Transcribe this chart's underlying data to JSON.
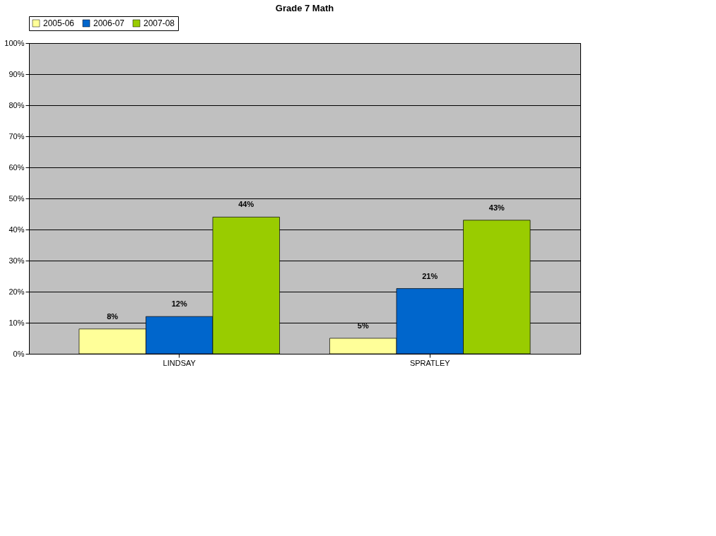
{
  "chart_data": {
    "type": "bar",
    "title": "Grade 7 Math",
    "categories": [
      "LINDSAY",
      "SPRATLEY"
    ],
    "series": [
      {
        "name": "2005-06",
        "color": "#ffff99",
        "values": [
          8,
          5
        ],
        "value_labels": [
          "8%",
          "5%"
        ]
      },
      {
        "name": "2006-07",
        "color": "#0066cc",
        "values": [
          12,
          21
        ],
        "value_labels": [
          "12%",
          "21%"
        ]
      },
      {
        "name": "2007-08",
        "color": "#99cc00",
        "values": [
          44,
          43
        ],
        "value_labels": [
          "44%",
          "43%"
        ]
      }
    ],
    "ylim": [
      0,
      100
    ],
    "yticks": [
      {
        "value": 0,
        "label": "0%"
      },
      {
        "value": 10,
        "label": "10%"
      },
      {
        "value": 20,
        "label": "20%"
      },
      {
        "value": 30,
        "label": "30%"
      },
      {
        "value": 40,
        "label": "40%"
      },
      {
        "value": 50,
        "label": "50%"
      },
      {
        "value": 60,
        "label": "60%"
      },
      {
        "value": 70,
        "label": "70%"
      },
      {
        "value": 80,
        "label": "80%"
      },
      {
        "value": 90,
        "label": "90%"
      },
      {
        "value": 100,
        "label": "100%"
      }
    ],
    "grid": "y",
    "legend": "top"
  }
}
